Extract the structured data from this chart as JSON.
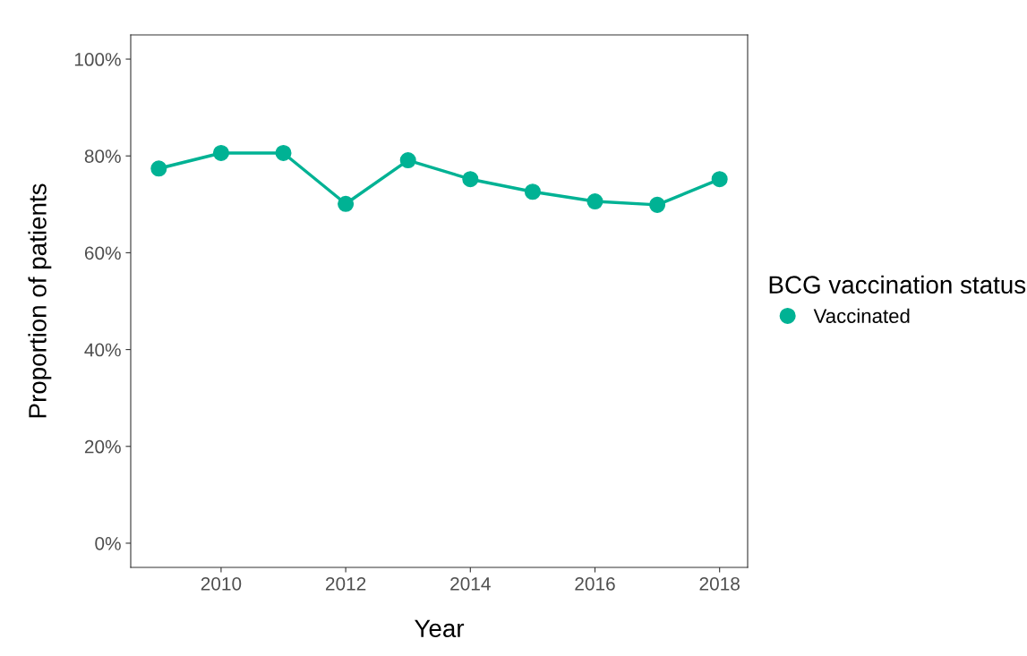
{
  "chart_data": {
    "type": "line",
    "xlabel": "Year",
    "ylabel": "Proportion of patients",
    "legend_title": "BCG vaccination status",
    "x": [
      2009,
      2010,
      2011,
      2012,
      2013,
      2014,
      2015,
      2016,
      2017,
      2018
    ],
    "series": [
      {
        "name": "Vaccinated",
        "color": "#00b294",
        "values": [
          77.4,
          80.6,
          80.6,
          70.1,
          79.1,
          75.2,
          72.6,
          70.6,
          69.9,
          75.2
        ]
      }
    ],
    "xlim": [
      2008.55,
      2018.45
    ],
    "xticks": [
      2010,
      2012,
      2014,
      2016,
      2018
    ],
    "ylim": [
      -5,
      105
    ],
    "yticks": [
      {
        "value": 0,
        "label": "0%"
      },
      {
        "value": 20,
        "label": "20%"
      },
      {
        "value": 40,
        "label": "40%"
      },
      {
        "value": 60,
        "label": "60%"
      },
      {
        "value": 80,
        "label": "80%"
      },
      {
        "value": 100,
        "label": "100%"
      }
    ],
    "grid": false,
    "legend": "right",
    "marker": "circle",
    "line_style": "solid"
  }
}
